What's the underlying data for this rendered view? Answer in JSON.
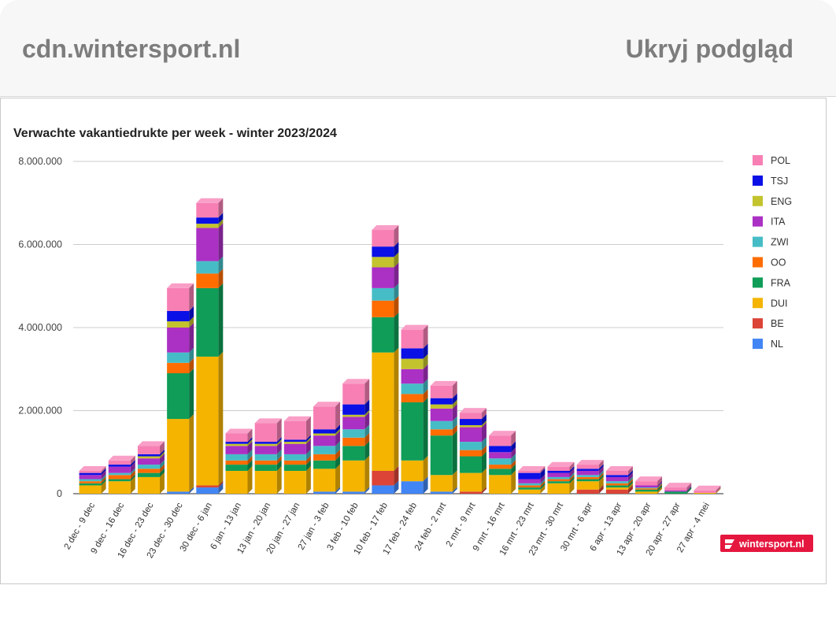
{
  "header": {
    "domain": "cdn.wintersport.nl",
    "hide_preview": "Ukryj podgląd"
  },
  "logo": {
    "text": "wintersport.nl"
  },
  "colors": {
    "NL": "#4285f4",
    "BE": "#db4437",
    "DUI": "#f4b400",
    "FRA": "#0f9d58",
    "OO": "#ff6d01",
    "ZWI": "#46bdc6",
    "ITA": "#ab30c4",
    "ENG": "#c3c32e",
    "TSJ": "#0a10e6",
    "POL": "#f77fb4"
  },
  "chart_data": {
    "type": "bar",
    "stacked": true,
    "title": "Verwachte vakantiedrukte per week - winter 2023/2024",
    "xlabel": "",
    "ylabel": "",
    "ylim": [
      0,
      8000000
    ],
    "yticks": [
      "0",
      "2.000.000",
      "4.000.000",
      "6.000.000",
      "8.000.000"
    ],
    "grid": true,
    "legend_position": "right",
    "categories": [
      "2 dec - 9 dec",
      "9 dec - 16 dec",
      "16 dec - 23 dec",
      "23 dec - 30 dec",
      "30 dec - 6 jan",
      "6 jan - 13 jan",
      "13 jan - 20 jan",
      "20 jan - 27 jan",
      "27 jan - 3 feb",
      "3 feb - 10 feb",
      "10 feb - 17 feb",
      "17 feb - 24 feb",
      "24 feb - 2 mrt",
      "2 mrt - 9 mrt",
      "9 mrt - 16 mrt",
      "16 mrt - 23 mrt",
      "23 mrt - 30 mrt",
      "30 mrt - 6 apr",
      "6 apr - 13 apr",
      "13 apr - 20 apr",
      "20 apr - 27 apr",
      "27 apr - 4 mei"
    ],
    "legend_order": [
      "POL",
      "TSJ",
      "ENG",
      "ITA",
      "ZWI",
      "OO",
      "FRA",
      "DUI",
      "BE",
      "NL"
    ],
    "series": [
      {
        "name": "NL",
        "values": [
          0,
          0,
          0,
          50000,
          150000,
          0,
          0,
          0,
          50000,
          50000,
          200000,
          300000,
          50000,
          0,
          0,
          0,
          0,
          0,
          0,
          0,
          0,
          0
        ]
      },
      {
        "name": "BE",
        "values": [
          0,
          0,
          0,
          0,
          50000,
          0,
          0,
          0,
          0,
          0,
          350000,
          0,
          0,
          50000,
          0,
          0,
          0,
          100000,
          100000,
          0,
          0,
          0
        ]
      },
      {
        "name": "DUI",
        "values": [
          200000,
          300000,
          400000,
          1750000,
          3100000,
          550000,
          550000,
          550000,
          550000,
          750000,
          2850000,
          500000,
          400000,
          450000,
          450000,
          100000,
          250000,
          200000,
          50000,
          50000,
          0,
          20000
        ]
      },
      {
        "name": "FRA",
        "values": [
          50000,
          50000,
          100000,
          1100000,
          1650000,
          150000,
          150000,
          150000,
          200000,
          350000,
          850000,
          1400000,
          950000,
          400000,
          150000,
          50000,
          50000,
          50000,
          50000,
          50000,
          50000,
          0
        ]
      },
      {
        "name": "OO",
        "values": [
          50000,
          100000,
          100000,
          250000,
          350000,
          100000,
          100000,
          100000,
          150000,
          200000,
          400000,
          200000,
          150000,
          150000,
          100000,
          50000,
          50000,
          50000,
          50000,
          30000,
          0,
          0
        ]
      },
      {
        "name": "ZWI",
        "values": [
          50000,
          50000,
          100000,
          250000,
          300000,
          150000,
          150000,
          150000,
          200000,
          200000,
          300000,
          250000,
          200000,
          200000,
          150000,
          50000,
          50000,
          50000,
          50000,
          20000,
          0,
          0
        ]
      },
      {
        "name": "ITA",
        "values": [
          100000,
          150000,
          150000,
          600000,
          800000,
          200000,
          200000,
          250000,
          250000,
          300000,
          500000,
          350000,
          300000,
          350000,
          150000,
          100000,
          100000,
          100000,
          100000,
          50000,
          30000,
          0
        ]
      },
      {
        "name": "ENG",
        "values": [
          0,
          0,
          50000,
          150000,
          100000,
          50000,
          50000,
          50000,
          50000,
          50000,
          250000,
          250000,
          100000,
          50000,
          0,
          0,
          0,
          0,
          0,
          0,
          0,
          0
        ]
      },
      {
        "name": "TSJ",
        "values": [
          50000,
          50000,
          50000,
          250000,
          150000,
          50000,
          50000,
          50000,
          100000,
          250000,
          250000,
          250000,
          150000,
          150000,
          150000,
          150000,
          50000,
          50000,
          50000,
          0,
          0,
          0
        ]
      },
      {
        "name": "POL",
        "values": [
          50000,
          100000,
          200000,
          550000,
          350000,
          200000,
          450000,
          450000,
          550000,
          500000,
          400000,
          450000,
          300000,
          150000,
          250000,
          50000,
          100000,
          100000,
          100000,
          100000,
          70000,
          60000
        ]
      }
    ]
  }
}
